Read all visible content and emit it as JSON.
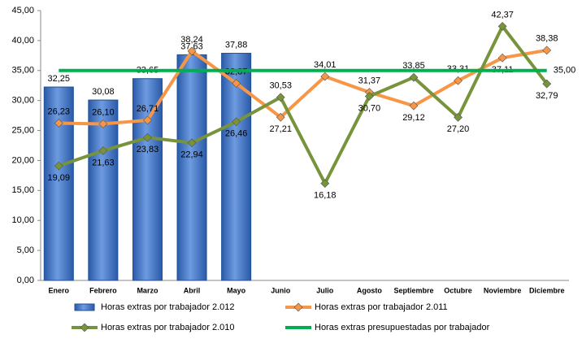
{
  "chart_data": {
    "type": "bar_line",
    "categories": [
      "Enero",
      "Febrero",
      "Marzo",
      "Abril",
      "Mayo",
      "Junio",
      "Julio",
      "Agosto",
      "Septiembre",
      "Octubre",
      "Noviembre",
      "Diciembre"
    ],
    "series": [
      {
        "name": "Horas extras por trabajador 2.012",
        "type": "bar",
        "color": "#3a6fc0",
        "values": [
          32.25,
          30.08,
          33.65,
          37.63,
          37.88,
          null,
          null,
          null,
          null,
          null,
          null,
          null
        ],
        "value_labels": [
          "32,25",
          "30,08",
          "33,65",
          "37,63",
          "37,88",
          null,
          null,
          null,
          null,
          null,
          null,
          null
        ]
      },
      {
        "name": "Horas extras por trabajador 2.011",
        "type": "line",
        "color": "#f79646",
        "values": [
          26.23,
          26.1,
          26.71,
          38.24,
          32.87,
          27.21,
          34.01,
          31.37,
          29.12,
          33.31,
          37.11,
          38.38
        ],
        "value_labels": [
          "26,23",
          "26,10",
          "26,71",
          "38,24",
          "32,87",
          "27,21",
          "34,01",
          "31,37",
          "29,12",
          "33,31",
          "37,11",
          "38,38"
        ]
      },
      {
        "name": "Horas extras por trabajador 2.010",
        "type": "line",
        "color": "#77933c",
        "values": [
          19.09,
          21.63,
          23.83,
          22.94,
          26.46,
          30.53,
          16.18,
          30.7,
          33.85,
          27.2,
          42.37,
          32.79
        ],
        "value_labels": [
          "19,09",
          "21,63",
          "23,83",
          "22,94",
          "26,46",
          "30,53",
          "16,18",
          "30,70",
          "33,85",
          "27,20",
          "42,37",
          "32,79"
        ]
      },
      {
        "name": "Horas extras presupuestadas por trabajador",
        "type": "hline",
        "color": "#00b050",
        "values": [
          35,
          35,
          35,
          35,
          35,
          35,
          35,
          35,
          35,
          35,
          35,
          35
        ],
        "value_labels": [
          null,
          null,
          null,
          null,
          null,
          null,
          null,
          null,
          null,
          null,
          null,
          "35,00"
        ]
      }
    ],
    "ylim": [
      0,
      45
    ],
    "yticks": [
      {
        "value": 0,
        "label": "0,00"
      },
      {
        "value": 5,
        "label": "5,00"
      },
      {
        "value": 10,
        "label": "10,00"
      },
      {
        "value": 15,
        "label": "15,00"
      },
      {
        "value": 20,
        "label": "20,00"
      },
      {
        "value": 25,
        "label": "25,00"
      },
      {
        "value": 30,
        "label": "30,00"
      },
      {
        "value": 35,
        "label": "35,00"
      },
      {
        "value": 40,
        "label": "40,00"
      },
      {
        "value": 45,
        "label": "45,00"
      }
    ],
    "legend": "bottom"
  }
}
